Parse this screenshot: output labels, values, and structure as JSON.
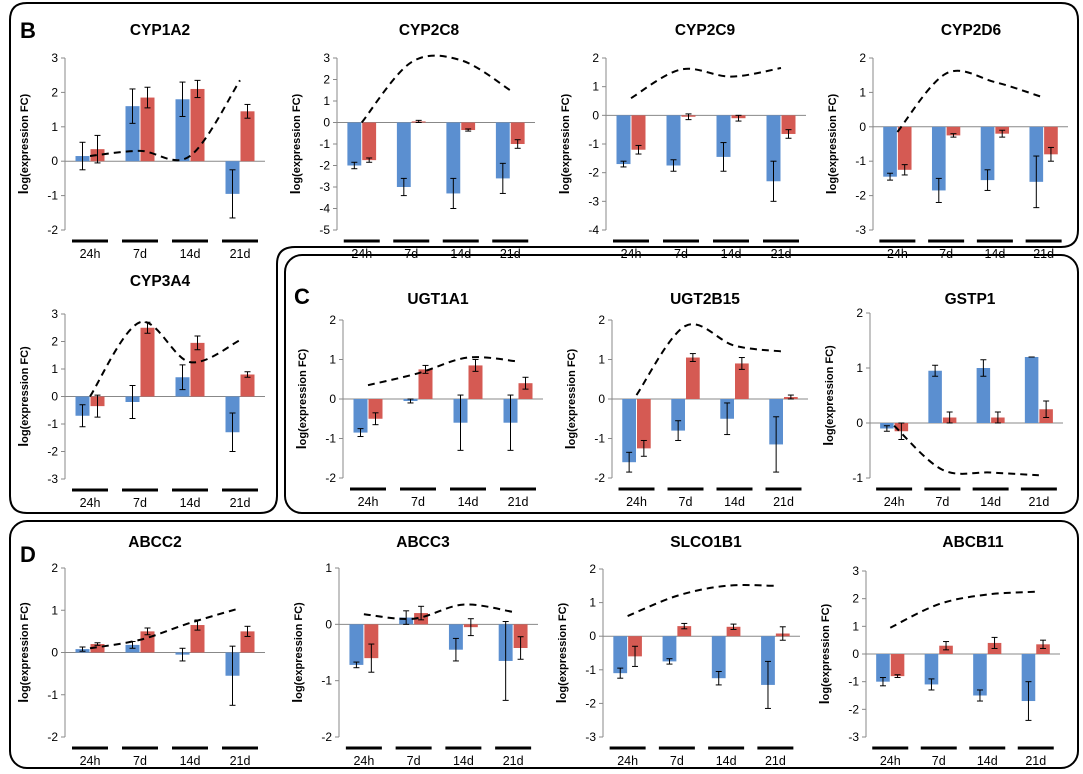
{
  "panels": [
    {
      "letter": "B",
      "color": "#000000"
    },
    {
      "letter": "C",
      "color": "#000000"
    },
    {
      "letter": "D",
      "color": "#000000"
    }
  ],
  "colors": {
    "series_1": "#5b8fd0",
    "series_2": "#d55a53",
    "trend": "#000000",
    "frame": "#000000"
  },
  "chart_data": [
    {
      "type": "bar",
      "panel": "B",
      "title": "CYP1A2",
      "ylabel": "log(expression FC)",
      "categories": [
        "24h",
        "7d",
        "14d",
        "21d"
      ],
      "ylim": [
        -2,
        3
      ],
      "yticks": [
        -2,
        -1,
        0,
        1,
        2,
        3
      ],
      "series": [
        {
          "values": [
            0.15,
            1.6,
            1.8,
            -0.95
          ],
          "errors": [
            0.4,
            0.5,
            0.5,
            0.7
          ]
        },
        {
          "values": [
            0.35,
            1.85,
            2.1,
            1.45
          ],
          "errors": [
            0.4,
            0.3,
            0.25,
            0.2
          ]
        }
      ],
      "trend": [
        0.15,
        0.3,
        0.15,
        2.35
      ],
      "errorbars": true,
      "grid": false,
      "legend": "none"
    },
    {
      "type": "bar",
      "panel": "B",
      "title": "CYP2C8",
      "ylabel": "log(expression FC)",
      "categories": [
        "24h",
        "7d",
        "14d",
        "21d"
      ],
      "ylim": [
        -5,
        3
      ],
      "yticks": [
        -5,
        -4,
        -3,
        -2,
        -1,
        0,
        1,
        2,
        3
      ],
      "series": [
        {
          "values": [
            -2.0,
            -3.0,
            -3.3,
            -2.6
          ],
          "errors": [
            0.15,
            0.4,
            0.7,
            0.7
          ]
        },
        {
          "values": [
            -1.75,
            0.05,
            -0.35,
            -1.0
          ],
          "errors": [
            0.1,
            0.05,
            0.05,
            0.2
          ]
        }
      ],
      "trend": [
        0.0,
        2.8,
        2.9,
        1.5
      ],
      "errorbars": true,
      "grid": false,
      "legend": "none"
    },
    {
      "type": "bar",
      "panel": "B",
      "title": "CYP2C9",
      "ylabel": "log(expression FC)",
      "categories": [
        "24h",
        "7d",
        "14d",
        "21d"
      ],
      "ylim": [
        -4,
        2
      ],
      "yticks": [
        -4,
        -3,
        -2,
        -1,
        0,
        1,
        2
      ],
      "series": [
        {
          "values": [
            -1.7,
            -1.75,
            -1.45,
            -2.3
          ],
          "errors": [
            0.1,
            0.2,
            0.5,
            0.7
          ]
        },
        {
          "values": [
            -1.2,
            -0.05,
            -0.1,
            -0.65
          ],
          "errors": [
            0.15,
            0.1,
            0.1,
            0.15
          ]
        }
      ],
      "trend": [
        0.6,
        1.6,
        1.35,
        1.65
      ],
      "errorbars": true,
      "grid": false,
      "legend": "none"
    },
    {
      "type": "bar",
      "panel": "B",
      "title": "CYP2D6",
      "ylabel": "log(expression FC)",
      "categories": [
        "24h",
        "7d",
        "14d",
        "21d"
      ],
      "ylim": [
        -3,
        2
      ],
      "yticks": [
        -3,
        -2,
        -1,
        0,
        1,
        2
      ],
      "series": [
        {
          "values": [
            -1.45,
            -1.85,
            -1.55,
            -1.6
          ],
          "errors": [
            0.1,
            0.35,
            0.3,
            0.75
          ]
        },
        {
          "values": [
            -1.25,
            -0.25,
            -0.2,
            -0.8
          ],
          "errors": [
            0.15,
            0.05,
            0.1,
            0.2
          ]
        }
      ],
      "trend": [
        -0.15,
        1.55,
        1.3,
        0.85
      ],
      "errorbars": true,
      "grid": false,
      "legend": "none"
    },
    {
      "type": "bar",
      "panel": "B",
      "title": "CYP3A4",
      "ylabel": "log(expression FC)",
      "categories": [
        "24h",
        "7d",
        "14d",
        "21d"
      ],
      "ylim": [
        -3,
        3
      ],
      "yticks": [
        -3,
        -2,
        -1,
        0,
        1,
        2,
        3
      ],
      "series": [
        {
          "values": [
            -0.7,
            -0.2,
            0.7,
            -1.3
          ],
          "errors": [
            0.4,
            0.6,
            0.45,
            0.7
          ]
        },
        {
          "values": [
            -0.35,
            2.5,
            1.95,
            0.8
          ],
          "errors": [
            0.4,
            0.2,
            0.25,
            0.1
          ]
        }
      ],
      "trend": [
        0.0,
        2.7,
        1.25,
        2.05
      ],
      "errorbars": true,
      "grid": false,
      "legend": "none"
    },
    {
      "type": "bar",
      "panel": "C",
      "title": "UGT1A1",
      "ylabel": "log(expression FC)",
      "categories": [
        "24h",
        "7d",
        "14d",
        "21d"
      ],
      "ylim": [
        -2,
        2
      ],
      "yticks": [
        -2,
        -1,
        0,
        1,
        2
      ],
      "series": [
        {
          "values": [
            -0.85,
            -0.05,
            -0.6,
            -0.6
          ],
          "errors": [
            0.1,
            0.05,
            0.7,
            0.7
          ]
        },
        {
          "values": [
            -0.5,
            0.75,
            0.85,
            0.4
          ],
          "errors": [
            0.15,
            0.1,
            0.15,
            0.15
          ]
        }
      ],
      "trend": [
        0.35,
        0.65,
        1.05,
        0.95
      ],
      "errorbars": true,
      "grid": false,
      "legend": "none"
    },
    {
      "type": "bar",
      "panel": "C",
      "title": "UGT2B15",
      "ylabel": "log(expression FC)",
      "categories": [
        "24h",
        "7d",
        "14d",
        "21d"
      ],
      "ylim": [
        -2,
        2
      ],
      "yticks": [
        -2,
        -1,
        0,
        1,
        2
      ],
      "series": [
        {
          "values": [
            -1.6,
            -0.8,
            -0.5,
            -1.15
          ],
          "errors": [
            0.25,
            0.25,
            0.4,
            0.7
          ]
        },
        {
          "values": [
            -1.25,
            1.05,
            0.9,
            0.05
          ],
          "errors": [
            0.2,
            0.1,
            0.15,
            0.05
          ]
        }
      ],
      "trend": [
        0.1,
        1.85,
        1.35,
        1.2
      ],
      "errorbars": true,
      "grid": false,
      "legend": "none"
    },
    {
      "type": "bar",
      "panel": "C",
      "title": "GSTP1",
      "ylabel": "log(expression FC)",
      "categories": [
        "24h",
        "7d",
        "14d",
        "21d"
      ],
      "ylim": [
        -1,
        2
      ],
      "yticks": [
        -1,
        0,
        1,
        2
      ],
      "series": [
        {
          "values": [
            -0.1,
            0.95,
            1.0,
            1.2
          ],
          "errors": [
            0.05,
            0.1,
            0.15,
            0.0
          ]
        },
        {
          "values": [
            -0.15,
            0.1,
            0.1,
            0.25
          ],
          "errors": [
            0.15,
            0.1,
            0.1,
            0.15
          ]
        }
      ],
      "trend": [
        -0.05,
        -0.85,
        -0.9,
        -0.95
      ],
      "errorbars": true,
      "grid": false,
      "legend": "none"
    },
    {
      "type": "bar",
      "panel": "D",
      "title": "ABCC2",
      "ylabel": "log(expression FC)",
      "categories": [
        "24h",
        "7d",
        "14d",
        "21d"
      ],
      "ylim": [
        -2,
        2
      ],
      "yticks": [
        -2,
        -1,
        0,
        1,
        2
      ],
      "series": [
        {
          "values": [
            0.08,
            0.18,
            -0.05,
            -0.55
          ],
          "errors": [
            0.05,
            0.08,
            0.15,
            0.7
          ]
        },
        {
          "values": [
            0.2,
            0.5,
            0.65,
            0.5
          ],
          "errors": [
            0.03,
            0.08,
            0.12,
            0.12
          ]
        }
      ],
      "trend": [
        0.1,
        0.3,
        0.7,
        1.05
      ],
      "errorbars": true,
      "grid": false,
      "legend": "none"
    },
    {
      "type": "bar",
      "panel": "D",
      "title": "ABCC3",
      "ylabel": "log(expression FC)",
      "categories": [
        "24h",
        "7d",
        "14d",
        "21d"
      ],
      "ylim": [
        -2,
        1
      ],
      "yticks": [
        -2,
        -1,
        0,
        1
      ],
      "series": [
        {
          "values": [
            -0.72,
            0.12,
            -0.45,
            -0.65
          ],
          "errors": [
            0.05,
            0.12,
            0.2,
            0.7
          ]
        },
        {
          "values": [
            -0.6,
            0.2,
            -0.05,
            -0.42
          ],
          "errors": [
            0.25,
            0.12,
            0.15,
            0.2
          ]
        }
      ],
      "trend": [
        0.18,
        0.1,
        0.35,
        0.22
      ],
      "errorbars": true,
      "grid": false,
      "legend": "none"
    },
    {
      "type": "bar",
      "panel": "D",
      "title": "SLCO1B1",
      "ylabel": "log(expression FC)",
      "categories": [
        "24h",
        "7d",
        "14d",
        "21d"
      ],
      "ylim": [
        -3,
        2
      ],
      "yticks": [
        -3,
        -2,
        -1,
        0,
        1,
        2
      ],
      "series": [
        {
          "values": [
            -1.1,
            -0.75,
            -1.25,
            -1.45
          ],
          "errors": [
            0.15,
            0.08,
            0.2,
            0.7
          ]
        },
        {
          "values": [
            -0.6,
            0.3,
            0.28,
            0.08
          ],
          "errors": [
            0.3,
            0.08,
            0.08,
            0.2
          ]
        }
      ],
      "trend": [
        0.6,
        1.2,
        1.5,
        1.5
      ],
      "errorbars": true,
      "grid": false,
      "legend": "none"
    },
    {
      "type": "bar",
      "panel": "D",
      "title": "ABCB11",
      "ylabel": "log(expression FC)",
      "categories": [
        "24h",
        "7d",
        "14d",
        "21d"
      ],
      "ylim": [
        -3,
        3
      ],
      "yticks": [
        -3,
        -2,
        -1,
        0,
        1,
        2,
        3
      ],
      "series": [
        {
          "values": [
            -1.0,
            -1.1,
            -1.5,
            -1.7
          ],
          "errors": [
            0.15,
            0.2,
            0.2,
            0.7
          ]
        },
        {
          "values": [
            -0.8,
            0.3,
            0.4,
            0.35
          ],
          "errors": [
            0.05,
            0.15,
            0.2,
            0.15
          ]
        }
      ],
      "trend": [
        0.95,
        1.8,
        2.15,
        2.25
      ],
      "errorbars": true,
      "grid": false,
      "legend": "none"
    }
  ]
}
